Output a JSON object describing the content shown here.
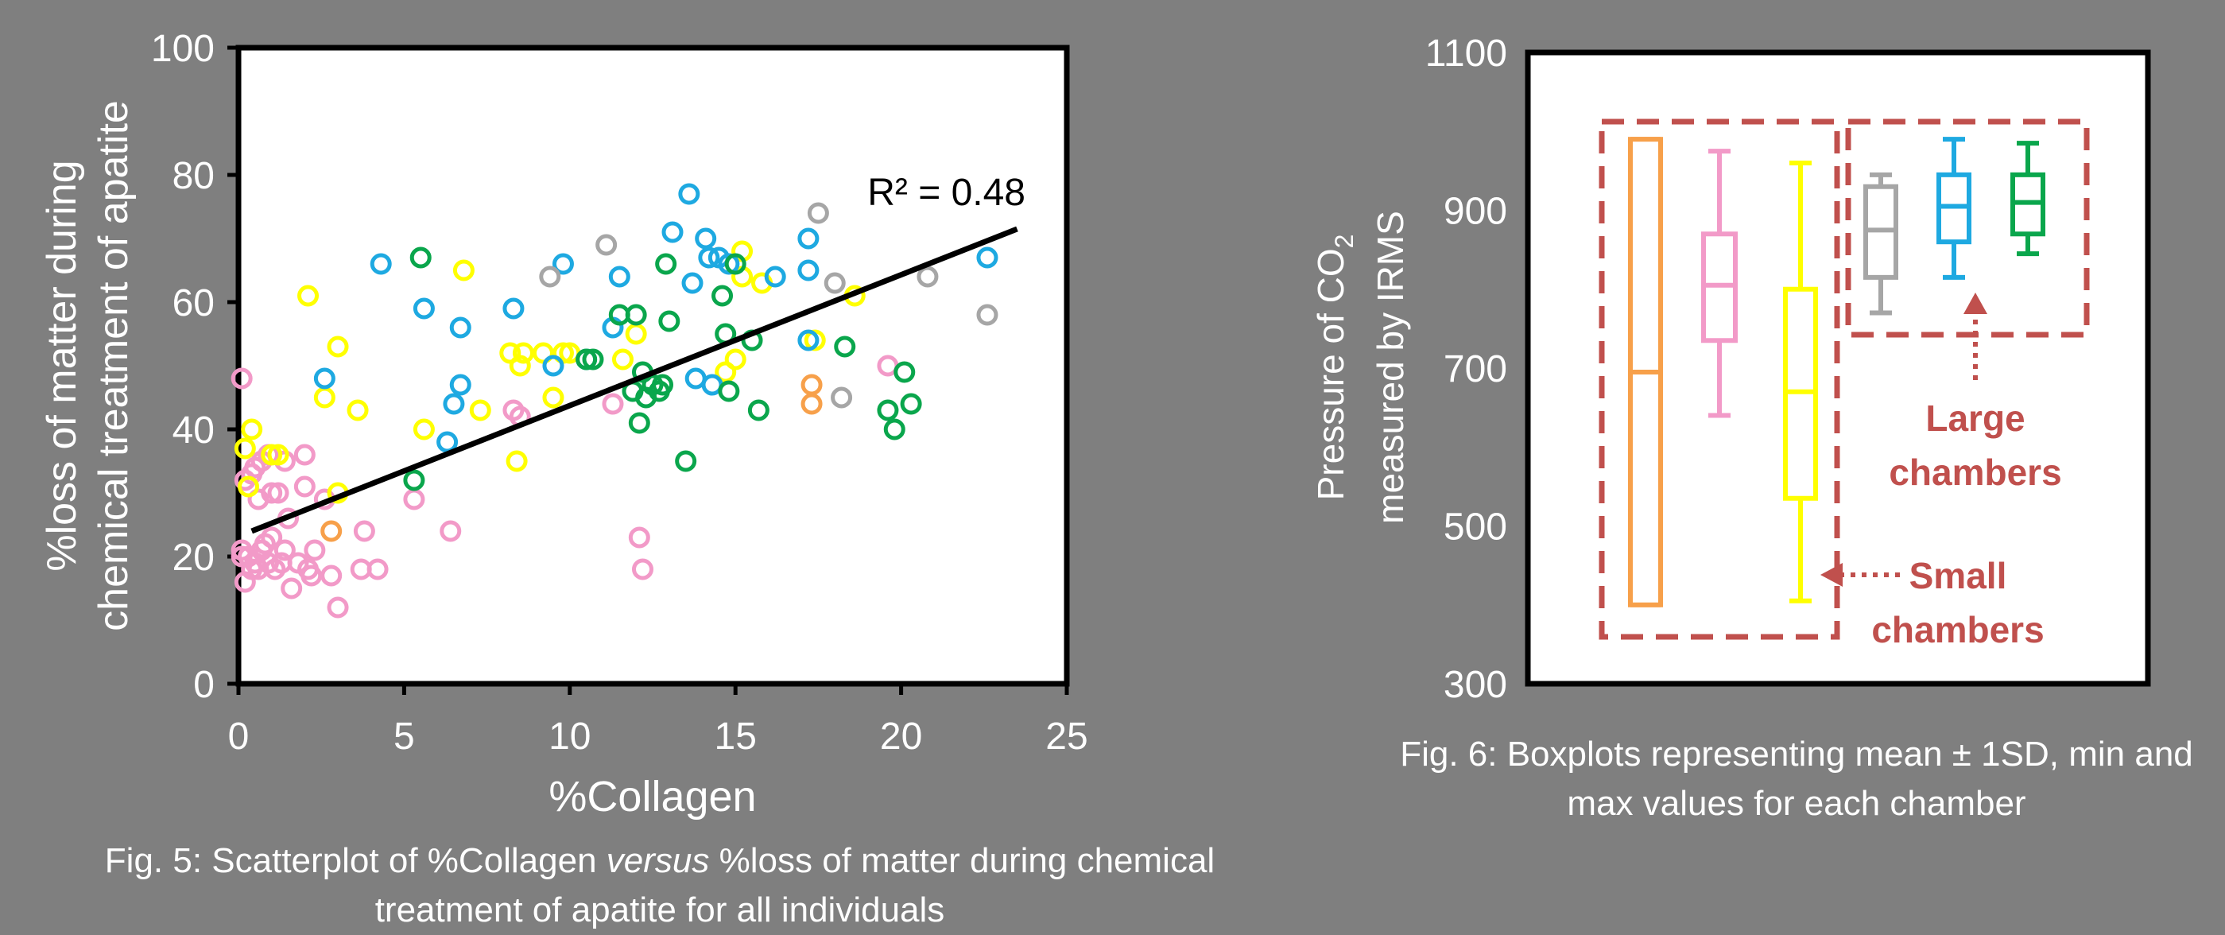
{
  "colors": {
    "background": "#7f7f7f",
    "orange": "#f7a04a",
    "pink": "#f29ac8",
    "yellow": "#ffff00",
    "blue": "#1ea9e1",
    "green": "#0aa64c",
    "gray": "#a6a6a6",
    "annotation": "#c0504d"
  },
  "fig5": {
    "caption_a": "Fig. 5: Scatterplot of %Collagen ",
    "caption_b": "versus",
    "caption_c": " %loss of matter during chemical treatment of apatite for all individuals"
  },
  "fig6": {
    "caption": "Fig. 6: Boxplots representing mean ± 1SD, min and max values for each chamber"
  },
  "chart_data": [
    {
      "type": "scatter",
      "xlabel": "%Collagen",
      "ylabel_line1": "%loss of matter during",
      "ylabel_line2": "chemical treatment of apatite",
      "xlim": [
        0,
        25
      ],
      "ylim": [
        0,
        100
      ],
      "xticks": [
        "0",
        "5",
        "10",
        "15",
        "20",
        "25"
      ],
      "yticks": [
        "0",
        "20",
        "40",
        "60",
        "80",
        "100"
      ],
      "grid": false,
      "annotation": "R² = 0.48",
      "trendline": {
        "x": [
          0.4,
          23.5
        ],
        "y": [
          24,
          71.5
        ]
      },
      "series": [
        {
          "color": "pink",
          "points": [
            [
              0.1,
              20
            ],
            [
              0.2,
              16
            ],
            [
              0.1,
              21
            ],
            [
              0.3,
              20
            ],
            [
              0.4,
              18
            ],
            [
              0.5,
              19
            ],
            [
              0.6,
              18
            ],
            [
              0.7,
              21
            ],
            [
              0.8,
              22
            ],
            [
              0.9,
              19
            ],
            [
              1.0,
              23
            ],
            [
              1.1,
              18
            ],
            [
              1.3,
              19
            ],
            [
              1.4,
              21
            ],
            [
              1.6,
              15
            ],
            [
              1.8,
              19
            ],
            [
              2.1,
              18
            ],
            [
              2.2,
              17
            ],
            [
              2.3,
              21
            ],
            [
              2.8,
              17
            ],
            [
              0.2,
              32
            ],
            [
              0.4,
              33
            ],
            [
              0.5,
              34
            ],
            [
              0.6,
              29
            ],
            [
              0.7,
              35
            ],
            [
              0.9,
              36
            ],
            [
              1.0,
              30
            ],
            [
              1.2,
              30
            ],
            [
              1.4,
              35
            ],
            [
              1.5,
              26
            ],
            [
              2.0,
              36
            ],
            [
              2.0,
              31
            ],
            [
              2.6,
              29
            ],
            [
              3.0,
              12
            ],
            [
              3.7,
              18
            ],
            [
              3.8,
              24
            ],
            [
              4.2,
              18
            ],
            [
              5.3,
              29
            ],
            [
              6.4,
              24
            ],
            [
              8.3,
              43
            ],
            [
              8.5,
              42
            ],
            [
              11.3,
              44
            ],
            [
              12.1,
              23
            ],
            [
              12.2,
              18
            ],
            [
              19.6,
              50
            ],
            [
              0.1,
              48
            ]
          ]
        },
        {
          "color": "yellow",
          "points": [
            [
              0.2,
              37
            ],
            [
              0.4,
              40
            ],
            [
              0.3,
              31
            ],
            [
              1.0,
              36
            ],
            [
              1.2,
              36
            ],
            [
              2.1,
              61
            ],
            [
              2.6,
              45
            ],
            [
              3.0,
              30
            ],
            [
              3.0,
              53
            ],
            [
              3.6,
              43
            ],
            [
              5.6,
              40
            ],
            [
              6.8,
              65
            ],
            [
              7.3,
              43
            ],
            [
              8.2,
              52
            ],
            [
              8.4,
              35
            ],
            [
              8.5,
              50
            ],
            [
              8.6,
              52
            ],
            [
              9.2,
              52
            ],
            [
              9.5,
              45
            ],
            [
              9.8,
              52
            ],
            [
              10.0,
              52
            ],
            [
              11.6,
              51
            ],
            [
              12.0,
              55
            ],
            [
              14.7,
              49
            ],
            [
              15.0,
              51
            ],
            [
              15.2,
              64
            ],
            [
              15.2,
              68
            ],
            [
              15.8,
              63
            ],
            [
              17.4,
              54
            ],
            [
              18.6,
              61
            ]
          ]
        },
        {
          "color": "orange",
          "points": [
            [
              2.8,
              24
            ],
            [
              17.3,
              47
            ],
            [
              17.3,
              44
            ]
          ]
        },
        {
          "color": "blue",
          "points": [
            [
              2.6,
              48
            ],
            [
              4.3,
              66
            ],
            [
              5.6,
              59
            ],
            [
              6.3,
              38
            ],
            [
              6.5,
              44
            ],
            [
              6.7,
              56
            ],
            [
              6.7,
              47
            ],
            [
              8.3,
              59
            ],
            [
              9.5,
              50
            ],
            [
              9.8,
              66
            ],
            [
              10.5,
              51
            ],
            [
              11.3,
              56
            ],
            [
              11.5,
              64
            ],
            [
              13.1,
              71
            ],
            [
              13.6,
              77
            ],
            [
              13.7,
              63
            ],
            [
              13.8,
              48
            ],
            [
              14.1,
              70
            ],
            [
              14.2,
              67
            ],
            [
              14.3,
              47
            ],
            [
              14.5,
              67
            ],
            [
              14.8,
              66
            ],
            [
              16.2,
              64
            ],
            [
              17.2,
              70
            ],
            [
              17.2,
              65
            ],
            [
              17.2,
              54
            ],
            [
              22.6,
              67
            ]
          ]
        },
        {
          "color": "green",
          "points": [
            [
              5.3,
              32
            ],
            [
              5.5,
              67
            ],
            [
              10.5,
              51
            ],
            [
              10.7,
              51
            ],
            [
              11.5,
              58
            ],
            [
              11.9,
              46
            ],
            [
              12.0,
              58
            ],
            [
              12.1,
              41
            ],
            [
              12.2,
              49
            ],
            [
              12.3,
              45
            ],
            [
              12.5,
              47
            ],
            [
              12.7,
              46
            ],
            [
              12.8,
              47
            ],
            [
              12.9,
              66
            ],
            [
              13.0,
              57
            ],
            [
              13.5,
              35
            ],
            [
              14.6,
              61
            ],
            [
              14.7,
              55
            ],
            [
              14.8,
              46
            ],
            [
              15.0,
              66
            ],
            [
              15.5,
              54
            ],
            [
              15.7,
              43
            ],
            [
              18.3,
              53
            ],
            [
              19.6,
              43
            ],
            [
              19.8,
              40
            ],
            [
              20.1,
              49
            ],
            [
              20.3,
              44
            ]
          ]
        },
        {
          "color": "gray",
          "points": [
            [
              9.4,
              64
            ],
            [
              11.1,
              69
            ],
            [
              17.5,
              74
            ],
            [
              18.0,
              63
            ],
            [
              18.2,
              45
            ],
            [
              20.8,
              64
            ],
            [
              22.6,
              58
            ]
          ]
        }
      ]
    },
    {
      "type": "box",
      "ylabel_line1": "Pressure of CO",
      "ylabel_sub": "2",
      "ylabel_line2": "measured by IRMS",
      "ylim": [
        300,
        1100
      ],
      "yticks": [
        "300",
        "500",
        "700",
        "900",
        "1100"
      ],
      "grid": false,
      "labels": {
        "large_line1": "Large",
        "large_line2": "chambers",
        "small_line1": "Small",
        "small_line2": "chambers"
      },
      "boxes": [
        {
          "color": "orange",
          "min": 400,
          "q1": 400,
          "mean": 695,
          "q3": 990,
          "max": 990
        },
        {
          "color": "pink",
          "min": 640,
          "q1": 735,
          "mean": 805,
          "q3": 870,
          "max": 975
        },
        {
          "color": "yellow",
          "min": 405,
          "q1": 535,
          "mean": 670,
          "q3": 800,
          "max": 960
        },
        {
          "color": "gray",
          "min": 770,
          "q1": 815,
          "mean": 875,
          "q3": 930,
          "max": 945
        },
        {
          "color": "blue",
          "min": 815,
          "q1": 860,
          "mean": 905,
          "q3": 945,
          "max": 990
        },
        {
          "color": "green",
          "min": 845,
          "q1": 870,
          "mean": 910,
          "q3": 945,
          "max": 985
        }
      ]
    }
  ]
}
